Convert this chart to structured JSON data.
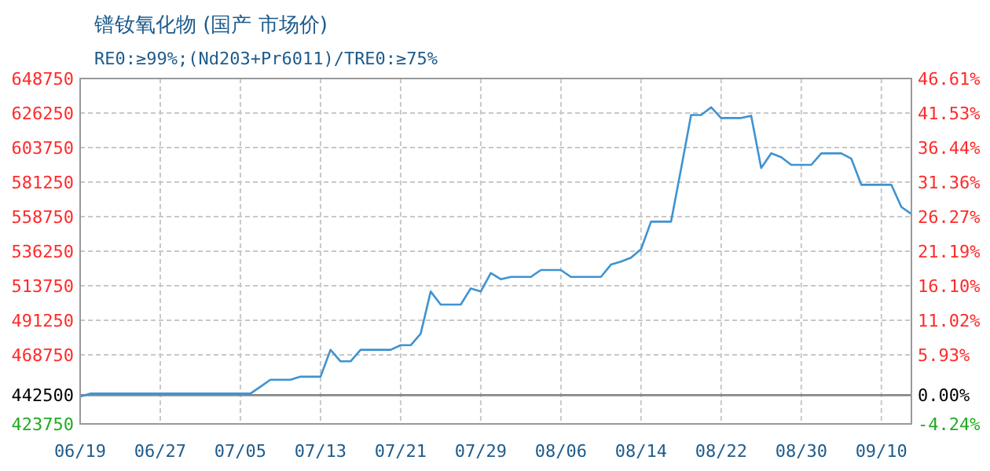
{
  "chart_data": {
    "type": "line",
    "title": "镨钕氧化物 (国产 市场价)",
    "subtitle": "RE0:≥99%;(Nd203+Pr6011)/TRE0:≥75%",
    "categories": [
      "06/19",
      null,
      null,
      null,
      null,
      null,
      null,
      null,
      "06/27",
      null,
      null,
      null,
      null,
      null,
      null,
      null,
      "07/05",
      null,
      null,
      null,
      null,
      null,
      null,
      null,
      "07/13",
      null,
      null,
      null,
      null,
      null,
      null,
      null,
      "07/21",
      null,
      null,
      null,
      null,
      null,
      null,
      null,
      "07/29",
      null,
      null,
      null,
      null,
      null,
      null,
      null,
      "08/06",
      null,
      null,
      null,
      null,
      null,
      null,
      null,
      "08/14",
      null,
      null,
      null,
      null,
      null,
      null,
      null,
      "08/22",
      null,
      null,
      null,
      null,
      null,
      null,
      null,
      "08/30",
      null,
      null,
      null,
      null,
      null,
      null,
      null,
      "09/10",
      null,
      null,
      null
    ],
    "series": [
      {
        "color": "#3e93d2",
        "values": [
          441500,
          443500,
          443500,
          443500,
          443500,
          443500,
          443500,
          443500,
          443500,
          443500,
          443500,
          443500,
          443500,
          443500,
          443500,
          443500,
          443500,
          443500,
          448000,
          452500,
          452500,
          452500,
          454500,
          454500,
          454500,
          472000,
          464500,
          464500,
          472000,
          472000,
          472000,
          472000,
          475000,
          475000,
          482500,
          510000,
          501500,
          501500,
          501500,
          512000,
          510000,
          522000,
          518000,
          519500,
          519500,
          519500,
          524000,
          524000,
          524000,
          519500,
          519500,
          519500,
          519500,
          527500,
          529500,
          532000,
          537500,
          555500,
          555500,
          555500,
          590000,
          625000,
          625000,
          630000,
          623000,
          623000,
          623000,
          624500,
          590500,
          600000,
          597500,
          592500,
          592500,
          592500,
          600000,
          600000,
          600000,
          596500,
          579500,
          579500,
          579500,
          579500,
          565000,
          560500
        ]
      }
    ],
    "ylim": [
      423750,
      648750
    ],
    "yticks": [
      423750,
      442500,
      468750,
      491250,
      513750,
      536250,
      558750,
      581250,
      603750,
      626250,
      648750
    ],
    "y2lim": [
      -4.24,
      46.61
    ],
    "y2ticks": [
      {
        "value": -4.24,
        "label": "-4.24%"
      },
      {
        "value": 0,
        "label": "0.00%"
      },
      {
        "value": 5.93,
        "label": "5.93%"
      },
      {
        "value": 11.02,
        "label": "11.02%"
      },
      {
        "value": 16.1,
        "label": "16.10%"
      },
      {
        "value": 21.19,
        "label": "21.19%"
      },
      {
        "value": 26.27,
        "label": "26.27%"
      },
      {
        "value": 31.36,
        "label": "31.36%"
      },
      {
        "value": 36.44,
        "label": "36.44%"
      },
      {
        "value": 41.53,
        "label": "41.53%"
      },
      {
        "value": 46.61,
        "label": "46.61%"
      }
    ],
    "ref_lines": [
      {
        "axis": "y",
        "value": 442500,
        "color": "#888888"
      }
    ],
    "grid": true,
    "marker": "none",
    "line_style": "solid"
  }
}
